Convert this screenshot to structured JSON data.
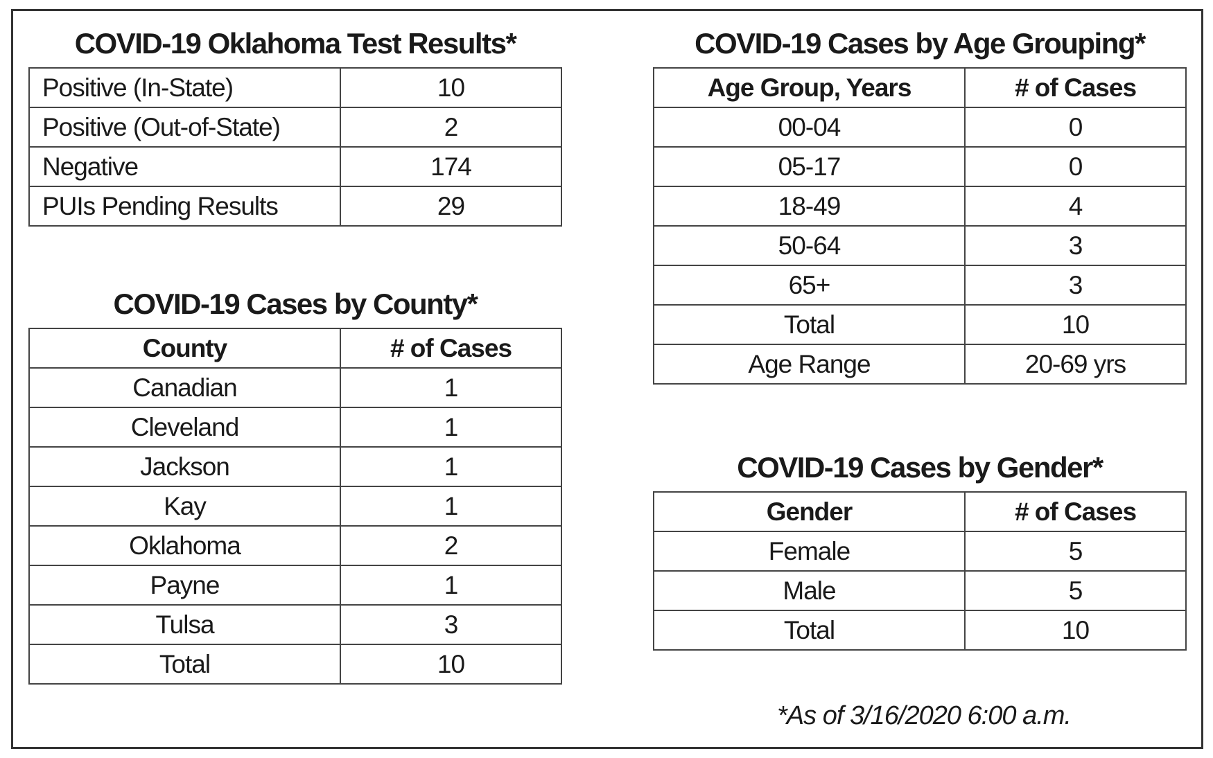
{
  "test_results": {
    "title": "COVID-19 Oklahoma Test Results*",
    "rows": [
      [
        "Positive (In-State)",
        10
      ],
      [
        "Positive (Out-of-State)",
        2
      ],
      [
        "Negative",
        174
      ],
      [
        "PUIs Pending Results",
        29
      ]
    ]
  },
  "county": {
    "title": "COVID-19 Cases by County*",
    "header": [
      "County",
      "# of Cases"
    ],
    "rows": [
      [
        "Canadian",
        1
      ],
      [
        "Cleveland",
        1
      ],
      [
        "Jackson",
        1
      ],
      [
        "Kay",
        1
      ],
      [
        "Oklahoma",
        2
      ],
      [
        "Payne",
        1
      ],
      [
        "Tulsa",
        3
      ],
      [
        "Total",
        10
      ]
    ]
  },
  "age": {
    "title": "COVID-19 Cases by Age Grouping*",
    "header": [
      "Age Group, Years",
      "# of Cases"
    ],
    "rows": [
      [
        "00-04",
        0
      ],
      [
        "05-17",
        0
      ],
      [
        "18-49",
        4
      ],
      [
        "50-64",
        3
      ],
      [
        "65+",
        3
      ],
      [
        "Total",
        10
      ],
      [
        "Age Range",
        "20-69 yrs"
      ]
    ]
  },
  "gender": {
    "title": "COVID-19 Cases by Gender*",
    "header": [
      "Gender",
      "# of Cases"
    ],
    "rows": [
      [
        "Female",
        5
      ],
      [
        "Male",
        5
      ],
      [
        "Total",
        10
      ]
    ]
  },
  "footnote": "*As of 3/16/2020 6:00 a.m."
}
